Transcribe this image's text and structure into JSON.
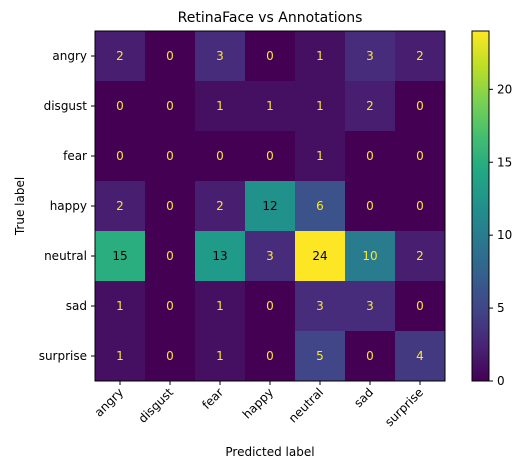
{
  "chart_data": {
    "type": "heatmap",
    "title": "RetinaFace vs Annotations",
    "xlabel": "Predicted label",
    "ylabel": "True label",
    "x_categories": [
      "angry",
      "disgust",
      "fear",
      "happy",
      "neutral",
      "sad",
      "surprise"
    ],
    "y_categories": [
      "angry",
      "disgust",
      "fear",
      "happy",
      "neutral",
      "sad",
      "surprise"
    ],
    "values": [
      [
        2,
        0,
        3,
        0,
        1,
        3,
        2
      ],
      [
        0,
        0,
        1,
        1,
        1,
        2,
        0
      ],
      [
        0,
        0,
        0,
        0,
        1,
        0,
        0
      ],
      [
        2,
        0,
        2,
        12,
        6,
        0,
        0
      ],
      [
        15,
        0,
        13,
        3,
        24,
        10,
        2
      ],
      [
        1,
        0,
        1,
        0,
        3,
        3,
        0
      ],
      [
        1,
        0,
        1,
        0,
        5,
        0,
        4
      ]
    ],
    "colormap": "viridis",
    "vmin": 0,
    "vmax": 24,
    "colorbar_ticks": [
      0,
      5,
      10,
      15,
      20
    ],
    "text_color_dark_cells": "#fde725",
    "text_color_light_cells": "#000000"
  }
}
